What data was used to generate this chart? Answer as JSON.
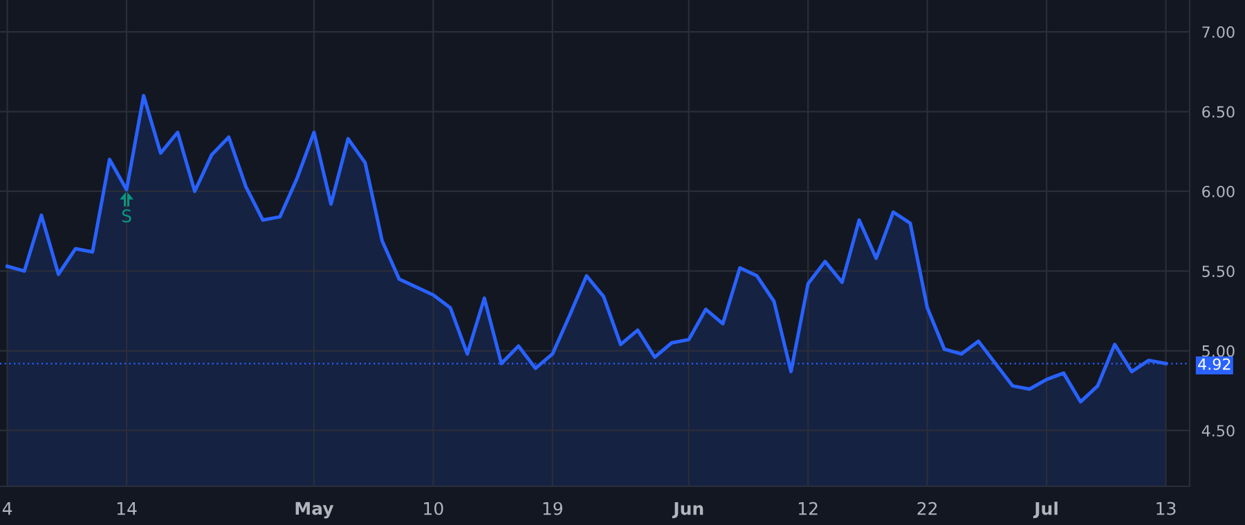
{
  "chart_data": {
    "type": "area",
    "categories": [
      "4",
      null,
      null,
      null,
      null,
      null,
      null,
      "14",
      null,
      null,
      null,
      null,
      null,
      null,
      null,
      null,
      null,
      null,
      "May",
      null,
      null,
      null,
      null,
      null,
      null,
      "10",
      null,
      null,
      null,
      null,
      null,
      null,
      "19",
      null,
      null,
      null,
      null,
      null,
      null,
      null,
      "Jun",
      null,
      null,
      null,
      null,
      null,
      null,
      "12",
      null,
      null,
      null,
      null,
      null,
      null,
      "22",
      null,
      null,
      null,
      null,
      null,
      null,
      "Jul",
      null,
      null,
      null,
      null,
      null,
      null,
      "13"
    ],
    "series": [
      {
        "color": "#2962ff",
        "values": [
          5.53,
          5.5,
          5.85,
          5.48,
          5.64,
          5.62,
          6.2,
          6.01,
          6.6,
          6.24,
          6.37,
          6.0,
          6.23,
          6.34,
          6.03,
          5.82,
          5.84,
          6.08,
          6.37,
          5.92,
          6.33,
          6.18,
          5.69,
          5.45,
          5.4,
          5.35,
          5.27,
          4.98,
          5.33,
          4.92,
          5.03,
          4.89,
          4.98,
          5.22,
          5.47,
          5.34,
          5.04,
          5.13,
          4.96,
          5.05,
          5.07,
          5.26,
          5.17,
          5.52,
          5.47,
          5.31,
          4.87,
          5.42,
          5.56,
          5.43,
          5.82,
          5.58,
          5.87,
          5.8,
          5.27,
          5.01,
          4.98,
          5.06,
          4.92,
          4.78,
          4.76,
          4.82,
          4.86,
          4.68,
          4.78,
          5.04,
          4.87,
          4.94,
          4.92
        ]
      }
    ],
    "ylim": [
      4.15,
      7.2
    ],
    "yticks": [
      {
        "value": 4.5,
        "label": "4.50"
      },
      {
        "value": 5,
        "label": "5.00"
      },
      {
        "value": 5.5,
        "label": "5.50"
      },
      {
        "value": 6,
        "label": "6.00"
      },
      {
        "value": 6.5,
        "label": "6.50"
      },
      {
        "value": 7,
        "label": "7.00"
      }
    ],
    "grid": true,
    "ref_lines": [
      {
        "axis": "y",
        "value": 4.92,
        "label": "4.92",
        "color": "#2962ff",
        "line_style": "dotted"
      }
    ],
    "annotations": [
      {
        "text": "S",
        "x": "14",
        "y": 6.01
      }
    ]
  }
}
